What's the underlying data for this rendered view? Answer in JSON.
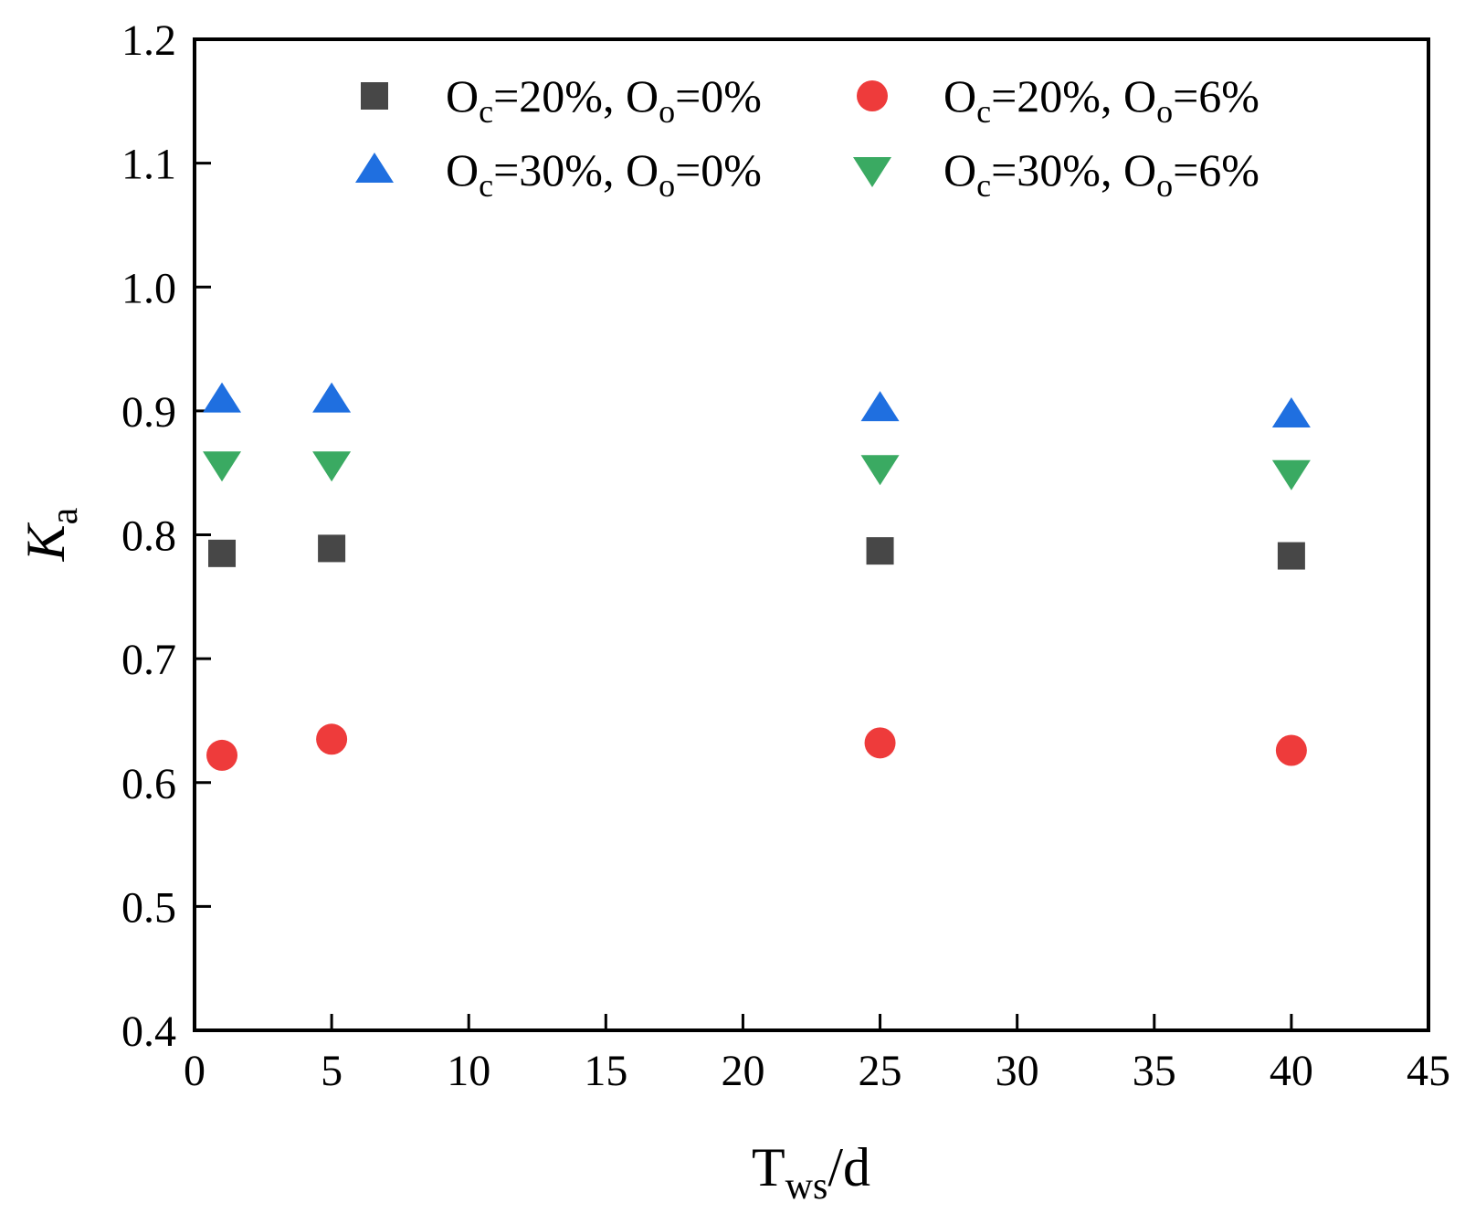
{
  "chart_data": {
    "type": "scatter",
    "title": "",
    "xlabel": {
      "main": "T",
      "sub": "ws",
      "suffix": "/d"
    },
    "ylabel": {
      "main": "K",
      "sub": "a"
    },
    "xlim": [
      0,
      45
    ],
    "ylim": [
      0.4,
      1.2
    ],
    "xticks": [
      0,
      5,
      10,
      15,
      20,
      25,
      30,
      35,
      40,
      45
    ],
    "yticks": [
      0.4,
      0.5,
      0.6,
      0.7,
      0.8,
      0.9,
      1.0,
      1.1,
      1.2
    ],
    "xtick_labels": [
      "0",
      "5",
      "10",
      "15",
      "20",
      "25",
      "30",
      "35",
      "40",
      "45"
    ],
    "ytick_labels": [
      "0.4",
      "0.5",
      "0.6",
      "0.7",
      "0.8",
      "0.9",
      "1.0",
      "1.1",
      "1.2"
    ],
    "grid": false,
    "legend_position": "top",
    "series": [
      {
        "name": "Oc=20%, Oo=0%",
        "label_parts": [
          "O",
          "c",
          "=20%, O",
          "o",
          "=0%"
        ],
        "marker": "square",
        "color": "#474747",
        "x": [
          1,
          5,
          25,
          40
        ],
        "y": [
          0.785,
          0.789,
          0.787,
          0.783
        ]
      },
      {
        "name": "Oc=20%, Oo=6%",
        "label_parts": [
          "O",
          "c",
          "=20%, O",
          "o",
          "=6%"
        ],
        "marker": "circle",
        "color": "#ee3b3b",
        "x": [
          1,
          5,
          25,
          40
        ],
        "y": [
          0.622,
          0.635,
          0.632,
          0.626
        ]
      },
      {
        "name": "Oc=30%, Oo=0%",
        "label_parts": [
          "O",
          "c",
          "=30%, O",
          "o",
          "=0%"
        ],
        "marker": "triangle-up",
        "color": "#1f6fe0",
        "x": [
          1,
          5,
          25,
          40
        ],
        "y": [
          0.909,
          0.909,
          0.902,
          0.897
        ]
      },
      {
        "name": "Oc=30%, Oo=6%",
        "label_parts": [
          "O",
          "c",
          "=30%, O",
          "o",
          "=6%"
        ],
        "marker": "triangle-down",
        "color": "#3aaa62",
        "x": [
          1,
          5,
          25,
          40
        ],
        "y": [
          0.857,
          0.857,
          0.854,
          0.85
        ]
      }
    ]
  }
}
